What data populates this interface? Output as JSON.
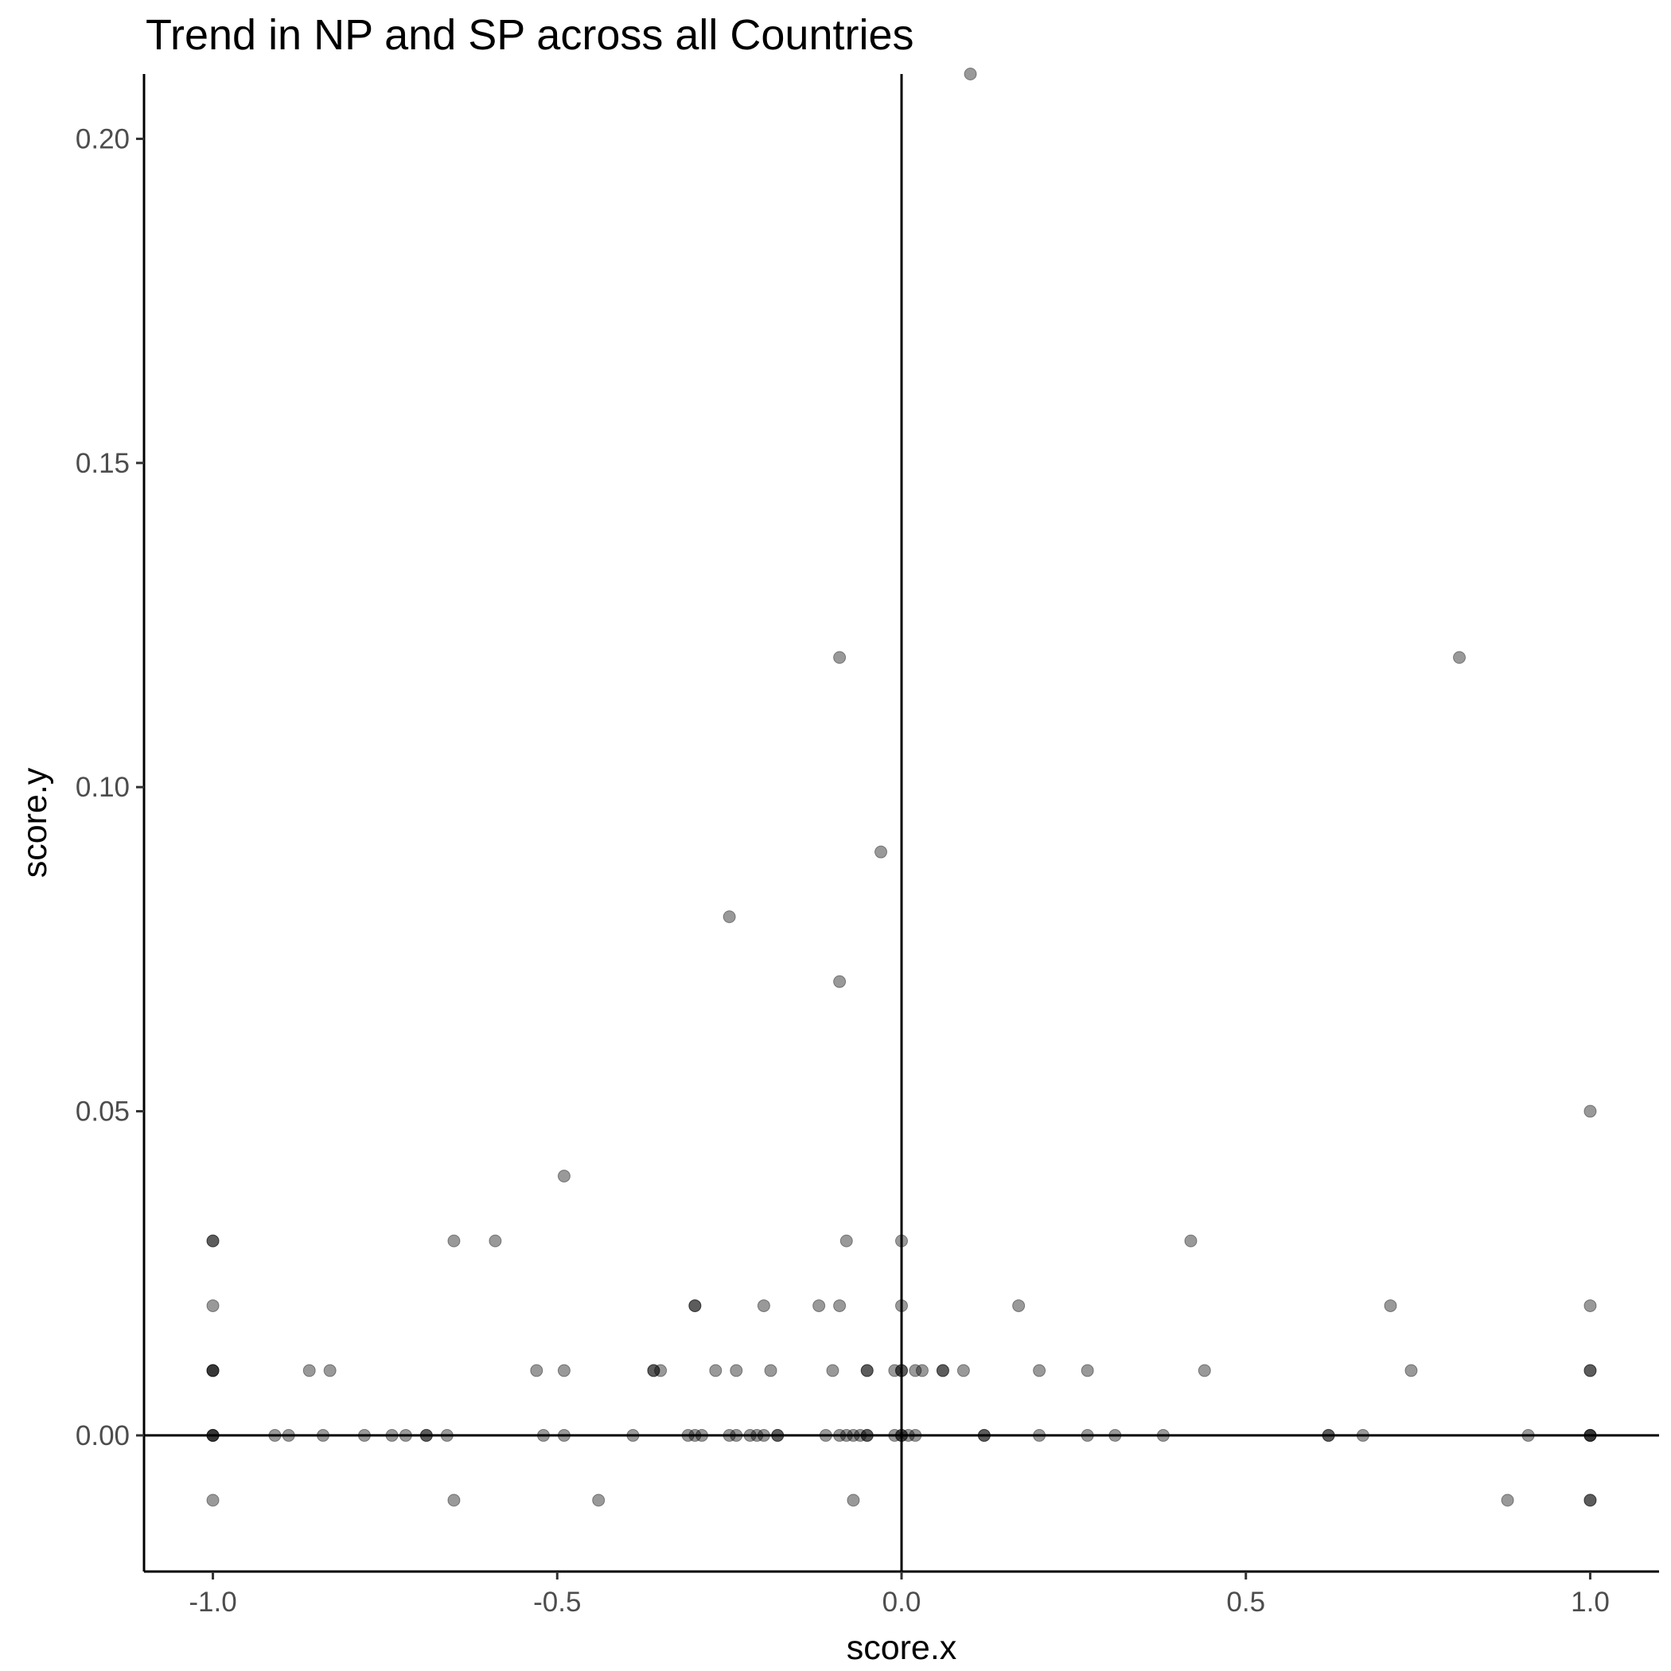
{
  "chart_data": {
    "type": "scatter",
    "title": "Trend in NP and SP across all Countries",
    "xlabel": "score.x",
    "ylabel": "score.y",
    "xlim": [
      -1.1,
      1.1
    ],
    "ylim": [
      -0.021,
      0.21
    ],
    "x_ticks": [
      -1.0,
      -0.5,
      0.0,
      0.5,
      1.0
    ],
    "x_tick_labels": [
      "-1.0",
      "-0.5",
      "0.0",
      "0.5",
      "1.0"
    ],
    "y_ticks": [
      0.0,
      0.05,
      0.1,
      0.15,
      0.2
    ],
    "y_tick_labels": [
      "0.00",
      "0.05",
      "0.10",
      "0.15",
      "0.20"
    ],
    "reference_lines": {
      "x": 0,
      "y": 0
    },
    "grid": false,
    "legend": "none",
    "point_color": "#000000",
    "point_alpha": 0.4,
    "points": [
      {
        "x": 0.1,
        "y": 0.21
      },
      {
        "x": -0.09,
        "y": 0.12
      },
      {
        "x": 0.81,
        "y": 0.12
      },
      {
        "x": -0.03,
        "y": 0.09
      },
      {
        "x": -0.25,
        "y": 0.08
      },
      {
        "x": -0.09,
        "y": 0.07
      },
      {
        "x": 1.0,
        "y": 0.05
      },
      {
        "x": -0.49,
        "y": 0.04
      },
      {
        "x": -1.0,
        "y": 0.03
      },
      {
        "x": -1.0,
        "y": 0.03
      },
      {
        "x": -0.65,
        "y": 0.03
      },
      {
        "x": -0.59,
        "y": 0.03
      },
      {
        "x": -0.08,
        "y": 0.03
      },
      {
        "x": 0.0,
        "y": 0.03
      },
      {
        "x": 0.42,
        "y": 0.03
      },
      {
        "x": -1.0,
        "y": 0.02
      },
      {
        "x": -0.3,
        "y": 0.02
      },
      {
        "x": -0.3,
        "y": 0.02
      },
      {
        "x": -0.2,
        "y": 0.02
      },
      {
        "x": -0.12,
        "y": 0.02
      },
      {
        "x": -0.09,
        "y": 0.02
      },
      {
        "x": 0.0,
        "y": 0.02
      },
      {
        "x": 0.17,
        "y": 0.02
      },
      {
        "x": 0.71,
        "y": 0.02
      },
      {
        "x": 1.0,
        "y": 0.02
      },
      {
        "x": -1.0,
        "y": 0.01
      },
      {
        "x": -1.0,
        "y": 0.01
      },
      {
        "x": -1.0,
        "y": 0.01
      },
      {
        "x": -0.86,
        "y": 0.01
      },
      {
        "x": -0.83,
        "y": 0.01
      },
      {
        "x": -0.53,
        "y": 0.01
      },
      {
        "x": -0.49,
        "y": 0.01
      },
      {
        "x": -0.36,
        "y": 0.01
      },
      {
        "x": -0.36,
        "y": 0.01
      },
      {
        "x": -0.35,
        "y": 0.01
      },
      {
        "x": -0.27,
        "y": 0.01
      },
      {
        "x": -0.24,
        "y": 0.01
      },
      {
        "x": -0.19,
        "y": 0.01
      },
      {
        "x": -0.1,
        "y": 0.01
      },
      {
        "x": -0.05,
        "y": 0.01
      },
      {
        "x": -0.05,
        "y": 0.01
      },
      {
        "x": -0.01,
        "y": 0.01
      },
      {
        "x": 0.0,
        "y": 0.01
      },
      {
        "x": 0.0,
        "y": 0.01
      },
      {
        "x": 0.02,
        "y": 0.01
      },
      {
        "x": 0.03,
        "y": 0.01
      },
      {
        "x": 0.06,
        "y": 0.01
      },
      {
        "x": 0.06,
        "y": 0.01
      },
      {
        "x": 0.09,
        "y": 0.01
      },
      {
        "x": 0.2,
        "y": 0.01
      },
      {
        "x": 0.27,
        "y": 0.01
      },
      {
        "x": 0.44,
        "y": 0.01
      },
      {
        "x": 0.74,
        "y": 0.01
      },
      {
        "x": 1.0,
        "y": 0.01
      },
      {
        "x": 1.0,
        "y": 0.01
      },
      {
        "x": -1.0,
        "y": 0.0
      },
      {
        "x": -1.0,
        "y": 0.0
      },
      {
        "x": -1.0,
        "y": 0.0
      },
      {
        "x": -0.91,
        "y": 0.0
      },
      {
        "x": -0.89,
        "y": 0.0
      },
      {
        "x": -0.84,
        "y": 0.0
      },
      {
        "x": -0.78,
        "y": 0.0
      },
      {
        "x": -0.74,
        "y": 0.0
      },
      {
        "x": -0.72,
        "y": 0.0
      },
      {
        "x": -0.69,
        "y": 0.0
      },
      {
        "x": -0.69,
        "y": 0.0
      },
      {
        "x": -0.66,
        "y": 0.0
      },
      {
        "x": -0.52,
        "y": 0.0
      },
      {
        "x": -0.49,
        "y": 0.0
      },
      {
        "x": -0.39,
        "y": 0.0
      },
      {
        "x": -0.31,
        "y": 0.0
      },
      {
        "x": -0.3,
        "y": 0.0
      },
      {
        "x": -0.29,
        "y": 0.0
      },
      {
        "x": -0.25,
        "y": 0.0
      },
      {
        "x": -0.24,
        "y": 0.0
      },
      {
        "x": -0.22,
        "y": 0.0
      },
      {
        "x": -0.21,
        "y": 0.0
      },
      {
        "x": -0.2,
        "y": 0.0
      },
      {
        "x": -0.18,
        "y": 0.0
      },
      {
        "x": -0.18,
        "y": 0.0
      },
      {
        "x": -0.11,
        "y": 0.0
      },
      {
        "x": -0.09,
        "y": 0.0
      },
      {
        "x": -0.08,
        "y": 0.0
      },
      {
        "x": -0.07,
        "y": 0.0
      },
      {
        "x": -0.06,
        "y": 0.0
      },
      {
        "x": -0.05,
        "y": 0.0
      },
      {
        "x": -0.05,
        "y": 0.0
      },
      {
        "x": -0.01,
        "y": 0.0
      },
      {
        "x": 0.0,
        "y": 0.0
      },
      {
        "x": 0.0,
        "y": 0.0
      },
      {
        "x": 0.01,
        "y": 0.0
      },
      {
        "x": 0.02,
        "y": 0.0
      },
      {
        "x": 0.12,
        "y": 0.0
      },
      {
        "x": 0.12,
        "y": 0.0
      },
      {
        "x": 0.2,
        "y": 0.0
      },
      {
        "x": 0.27,
        "y": 0.0
      },
      {
        "x": 0.31,
        "y": 0.0
      },
      {
        "x": 0.38,
        "y": 0.0
      },
      {
        "x": 0.62,
        "y": 0.0
      },
      {
        "x": 0.62,
        "y": 0.0
      },
      {
        "x": 0.67,
        "y": 0.0
      },
      {
        "x": 0.91,
        "y": 0.0
      },
      {
        "x": 1.0,
        "y": 0.0
      },
      {
        "x": 1.0,
        "y": 0.0
      },
      {
        "x": 1.0,
        "y": 0.0
      },
      {
        "x": -1.0,
        "y": -0.01
      },
      {
        "x": -0.65,
        "y": -0.01
      },
      {
        "x": -0.44,
        "y": -0.01
      },
      {
        "x": -0.07,
        "y": -0.01
      },
      {
        "x": 0.88,
        "y": -0.01
      },
      {
        "x": 1.0,
        "y": -0.01
      },
      {
        "x": 1.0,
        "y": -0.01
      }
    ]
  }
}
